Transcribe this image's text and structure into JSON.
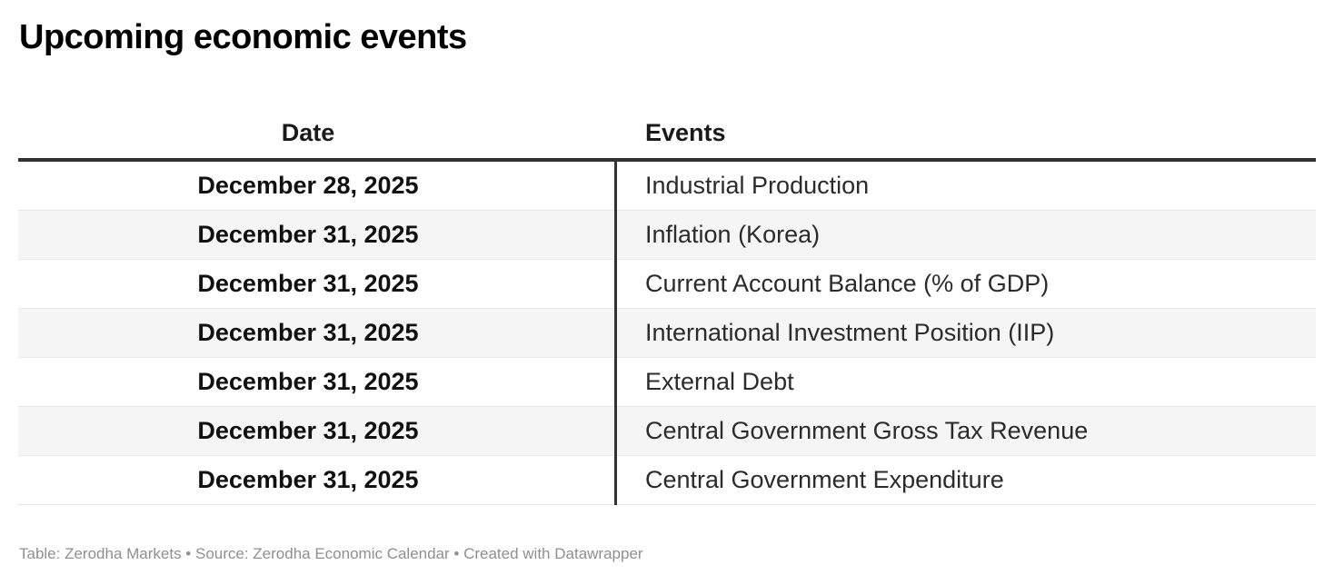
{
  "chart_data": {
    "type": "table",
    "title": "Upcoming economic events",
    "columns": [
      "Date",
      "Events"
    ],
    "rows": [
      {
        "date": "December 28, 2025",
        "event": "Industrial Production"
      },
      {
        "date": "December 31, 2025",
        "event": "Inflation (Korea)"
      },
      {
        "date": "December 31, 2025",
        "event": "Current Account Balance (% of GDP)"
      },
      {
        "date": "December 31, 2025",
        "event": "International Investment Position (IIP)"
      },
      {
        "date": "December 31, 2025",
        "event": "External Debt"
      },
      {
        "date": "December 31, 2025",
        "event": "Central Government Gross Tax Revenue"
      },
      {
        "date": "December 31, 2025",
        "event": "Central Government Expenditure"
      }
    ],
    "footer": "Table: Zerodha Markets • Source: Zerodha Economic Calendar • Created with Datawrapper",
    "layout_hints": {
      "striped_rows": true,
      "date_column_align": "center",
      "events_column_align": "left"
    },
    "colors": {
      "header_border": "#333333",
      "column_divider": "#333333",
      "row_stripe": "#f5f5f5",
      "row_separator": "#e8e8e8",
      "footer_text": "#8f8f8f",
      "title_text": "#000000"
    }
  }
}
